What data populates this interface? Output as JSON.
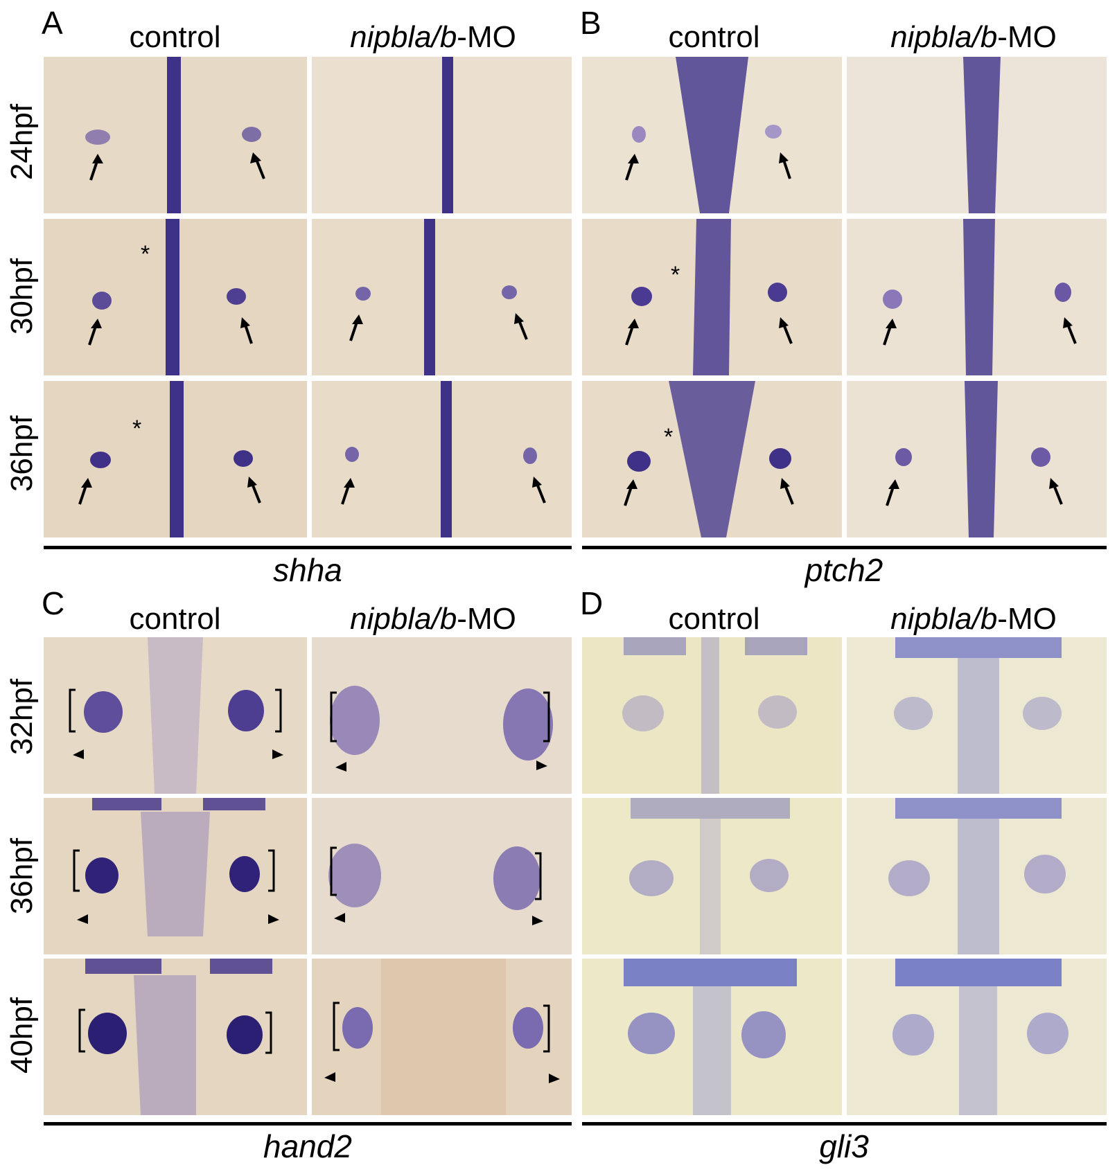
{
  "panels": [
    {
      "letter": "A",
      "gene": "shha",
      "col_control": "control",
      "col_mo_italic": "nipbla/b",
      "col_mo_suffix": "-MO",
      "rows": [
        "24hpf",
        "30hpf",
        "36hpf"
      ]
    },
    {
      "letter": "B",
      "gene": "ptch2",
      "col_control": "control",
      "col_mo_italic": "nipbla/b",
      "col_mo_suffix": "-MO",
      "rows": [
        "24hpf",
        "30hpf",
        "36hpf"
      ]
    },
    {
      "letter": "C",
      "gene": "hand2",
      "col_control": "control",
      "col_mo_italic": "nipbla/b",
      "col_mo_suffix": "-MO",
      "rows": [
        "32hpf",
        "36hpf",
        "40hpf"
      ]
    },
    {
      "letter": "D",
      "gene": "gli3",
      "col_control": "control",
      "col_mo_italic": "nipbla/b",
      "col_mo_suffix": "-MO",
      "rows": [],
      "rows_shared_with": "C"
    }
  ],
  "annotations": {
    "asterisk": "*"
  },
  "colors": {
    "stain": "#3a2f8a",
    "tissue": "#e8dcc8",
    "tissue_yellow": "#ece6c0",
    "background": "#ffffff"
  }
}
